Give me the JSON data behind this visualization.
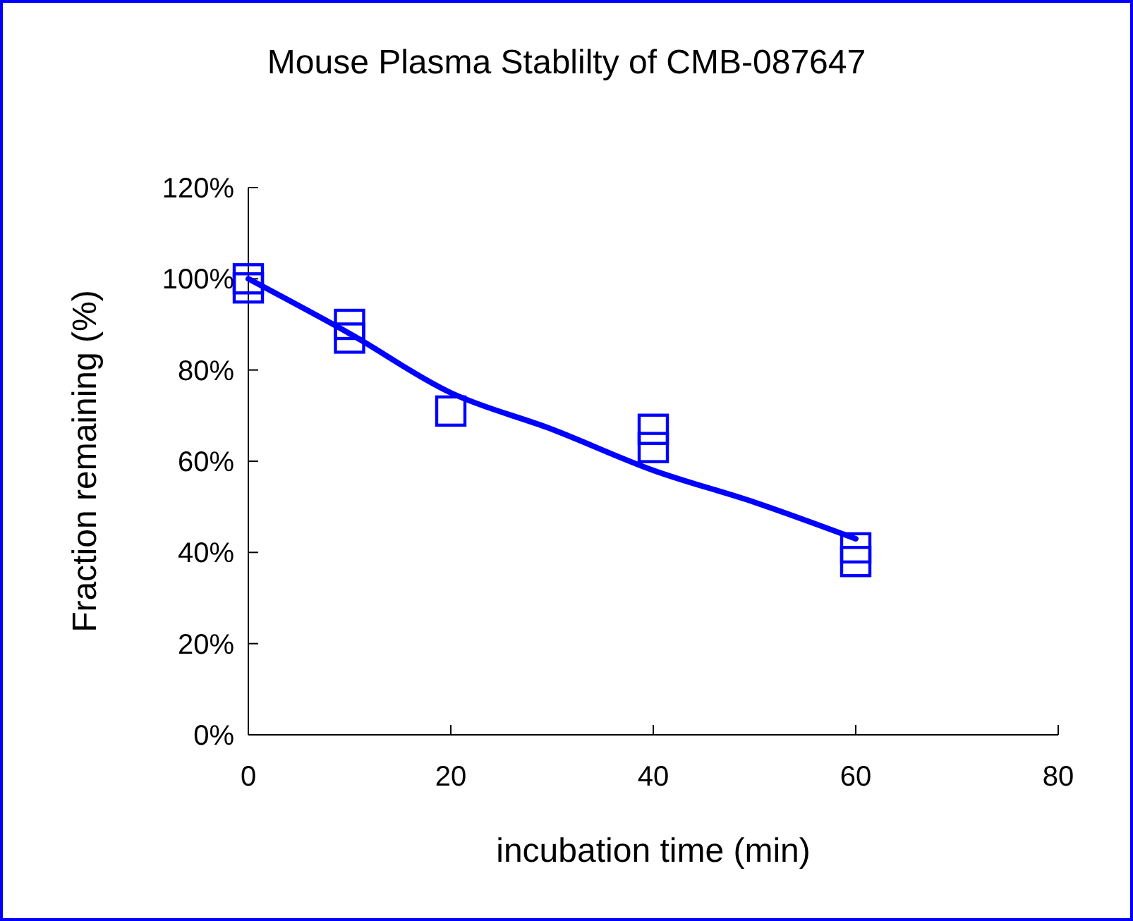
{
  "chart_data": {
    "type": "scatter",
    "title": "Mouse Plasma Stablilty of CMB-087647",
    "xlabel": "incubation time (min)",
    "ylabel": "Fraction remaining (%)",
    "xlim": [
      0,
      80
    ],
    "xticks": [
      0,
      20,
      40,
      60,
      80
    ],
    "ylim": [
      0,
      1.2
    ],
    "yticks": [
      {
        "value": 0,
        "label": "0%"
      },
      {
        "value": 0.2,
        "label": "20%"
      },
      {
        "value": 0.4,
        "label": "40%"
      },
      {
        "value": 0.6,
        "label": "60%"
      },
      {
        "value": 0.8,
        "label": "80%"
      },
      {
        "value": 1,
        "label": "100%"
      },
      {
        "value": 1.2,
        "label": "120%"
      }
    ],
    "grid": false,
    "series": [
      {
        "color": "#0000ff",
        "marker": "square",
        "x": [
          0,
          0,
          10,
          10,
          20,
          40,
          40,
          60,
          60
        ],
        "values": [
          1.0,
          0.98,
          0.9,
          0.87,
          0.71,
          0.67,
          0.63,
          0.41,
          0.38
        ]
      },
      {
        "type": "line",
        "color": "#0000ff",
        "marker": "none",
        "line_style": "solid",
        "x": [
          0,
          10,
          20,
          30,
          40,
          50,
          60
        ],
        "values": [
          1.0,
          0.88,
          0.75,
          0.67,
          0.58,
          0.51,
          0.43
        ]
      }
    ]
  }
}
